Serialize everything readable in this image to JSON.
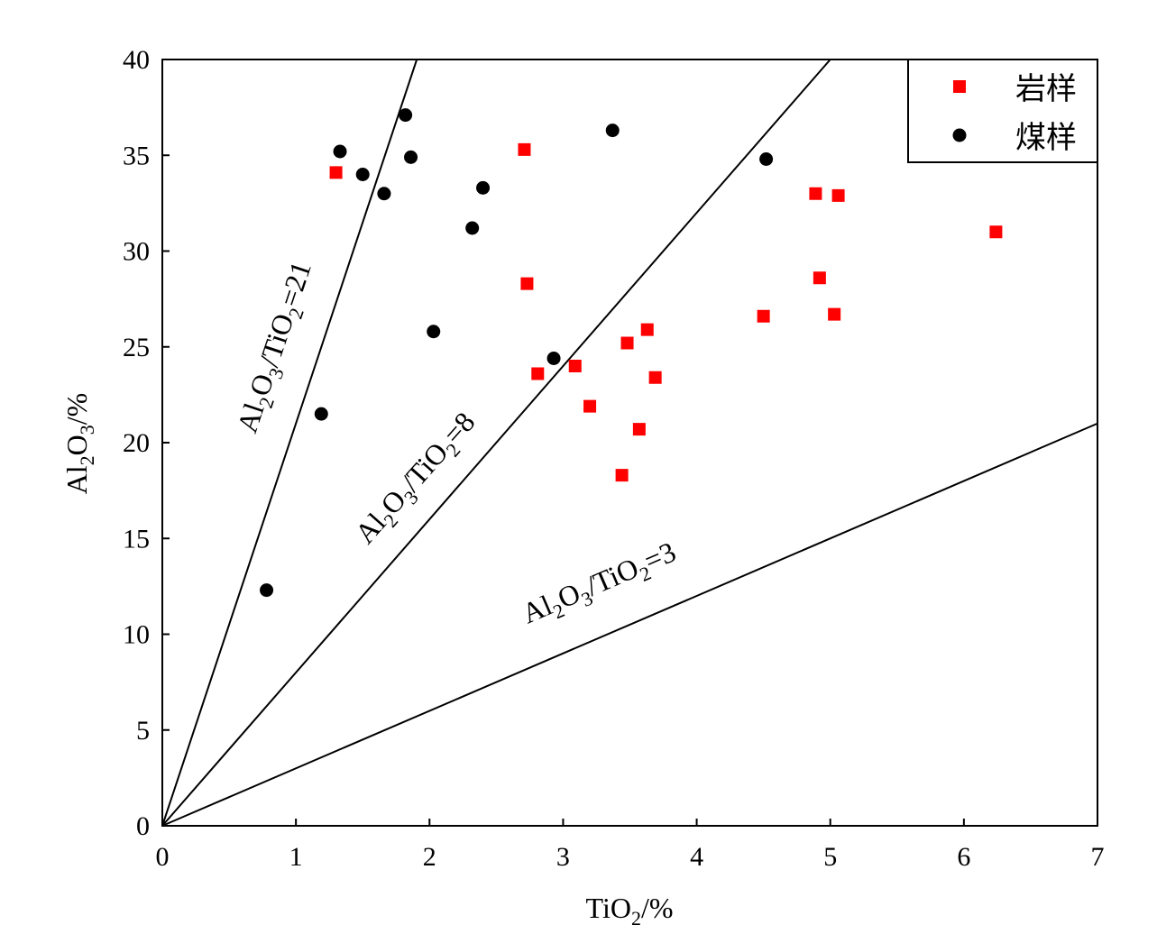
{
  "chart_data": {
    "type": "scatter",
    "title": "",
    "xlabel": {
      "main": "TiO",
      "sub": "2",
      "tail": "/%"
    },
    "ylabel": {
      "main": "Al",
      "sub1": "2",
      "mid": "O",
      "sub2": "3",
      "tail": "/%"
    },
    "xlim": [
      0,
      7
    ],
    "ylim": [
      0,
      40
    ],
    "xticks": [
      0,
      1,
      2,
      3,
      4,
      5,
      6,
      7
    ],
    "yticks": [
      0,
      5,
      10,
      15,
      20,
      25,
      30,
      35,
      40
    ],
    "grid": false,
    "legend_position": "top-right",
    "series": [
      {
        "name": "岩样",
        "marker": "square",
        "color": "#ff0000",
        "points": [
          [
            1.3,
            34.1
          ],
          [
            2.71,
            35.3
          ],
          [
            2.73,
            28.3
          ],
          [
            2.81,
            23.6
          ],
          [
            3.09,
            24.0
          ],
          [
            3.2,
            21.9
          ],
          [
            3.44,
            18.3
          ],
          [
            3.48,
            25.2
          ],
          [
            3.57,
            20.7
          ],
          [
            3.63,
            25.9
          ],
          [
            3.69,
            23.4
          ],
          [
            4.5,
            26.6
          ],
          [
            4.89,
            33.0
          ],
          [
            4.92,
            28.6
          ],
          [
            5.03,
            26.7
          ],
          [
            5.06,
            32.9
          ],
          [
            6.24,
            31.0
          ]
        ]
      },
      {
        "name": "煤样",
        "marker": "circle",
        "color": "#000000",
        "points": [
          [
            0.78,
            12.3
          ],
          [
            1.19,
            21.5
          ],
          [
            1.33,
            35.2
          ],
          [
            1.5,
            34.0
          ],
          [
            1.66,
            33.0
          ],
          [
            1.82,
            37.1
          ],
          [
            1.86,
            34.9
          ],
          [
            2.03,
            25.8
          ],
          [
            2.32,
            31.2
          ],
          [
            2.4,
            33.3
          ],
          [
            2.93,
            24.4
          ],
          [
            3.37,
            36.3
          ],
          [
            4.52,
            34.8
          ]
        ]
      }
    ],
    "reference_lines": [
      {
        "ratio": 21,
        "label": {
          "a": "Al",
          "s1": "2",
          "b": "O",
          "s2": "3",
          "c": "/TiO",
          "s3": "2",
          "d": "=21"
        }
      },
      {
        "ratio": 8,
        "label": {
          "a": "Al",
          "s1": "2",
          "b": "O",
          "s2": "3",
          "c": "/TiO",
          "s3": "2",
          "d": "=8"
        }
      },
      {
        "ratio": 3,
        "label": {
          "a": "Al",
          "s1": "2",
          "b": "O",
          "s2": "3",
          "c": "/TiO",
          "s3": "2",
          "d": "=3"
        }
      }
    ]
  }
}
